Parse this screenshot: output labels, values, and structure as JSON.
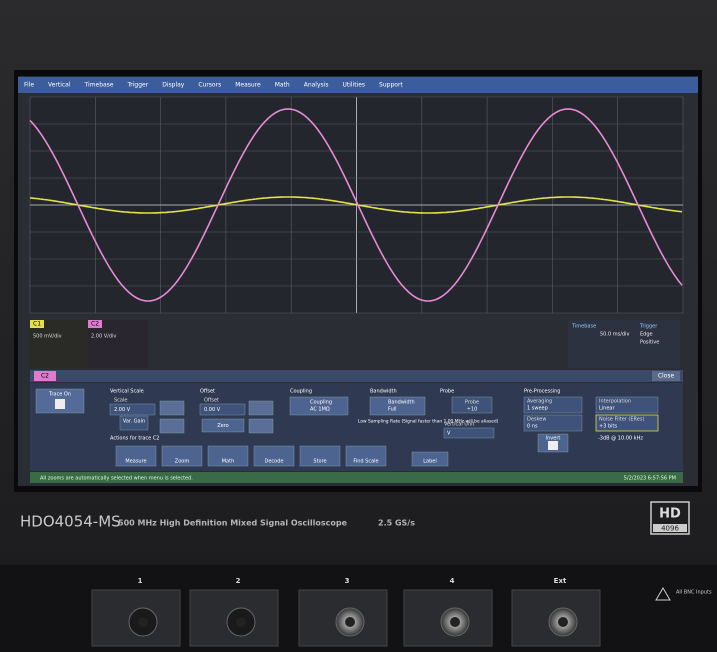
{
  "menu": [
    "File",
    "Vertical",
    "Timebase",
    "Trigger",
    "Display",
    "Cursors",
    "Measure",
    "Math",
    "Analysis",
    "Utilities",
    "Support"
  ],
  "channels": {
    "c1": "C1",
    "c2": "C2",
    "c1_scale": "500 mV/div",
    "c2_scale": "2.00 V/div"
  },
  "timebase": {
    "label": "Timebase",
    "value": "50.0 ms/div",
    "trigger": "Trigger",
    "mode": "Edge",
    "slope": "Positive"
  },
  "panel": {
    "tab": "C2",
    "close": "Close",
    "trace_on": "Trace On",
    "vertical_scale": {
      "label": "Vertical Scale",
      "scale": "Scale",
      "scale_value": "2.00 V",
      "var_gain": "Var. Gain"
    },
    "offset": {
      "label": "Offset",
      "offset": "Offset",
      "value": "0.00 V",
      "zero": "Zero"
    },
    "coupling": {
      "label": "Coupling",
      "coupling": "Coupling",
      "value": "AC 1MΩ"
    },
    "bandwidth": {
      "label": "Bandwidth",
      "bandwidth": "Bandwidth",
      "value": "Full",
      "note": "Low Sampling Rate (Signal faster than 1.00 MHz will be aliased)"
    },
    "probe": {
      "label": "Probe",
      "probe": "Probe",
      "value": "÷10",
      "unit_label": "Vertical Unit",
      "unit": "V"
    },
    "preprocessing": {
      "label": "Pre-Processing",
      "averaging": "Averaging",
      "averaging_value": "1 sweep",
      "deskew": "Deskew",
      "deskew_value": "0 ns",
      "invert": "Invert",
      "interpolation": "Interpolation",
      "interpolation_value": "Linear",
      "noise_filter": "Noise Filter (ERes)",
      "noise_filter_value": "+3 bits",
      "bandwidth_note": "-3dB @ 10.00 kHz"
    },
    "actions_label": "Actions for trace C2",
    "actions": [
      "Measure",
      "Zoom",
      "Math",
      "Decode",
      "Store",
      "Find Scale"
    ],
    "label_button": "Label"
  },
  "status": {
    "message": "All zooms are automatically selected when menu is selected.",
    "timestamp": "5/2/2023 6:57:56 PM"
  },
  "device": {
    "model": "HDO4054-MS",
    "description": "500 MHz High Definition Mixed Signal Oscilloscope",
    "rate": "2.5 GS/s",
    "badge": "HD",
    "badge_sub": "4096"
  },
  "inputs": [
    "1",
    "2",
    "3",
    "4",
    "Ext"
  ],
  "bnc_note": "All BNC Inputs"
}
